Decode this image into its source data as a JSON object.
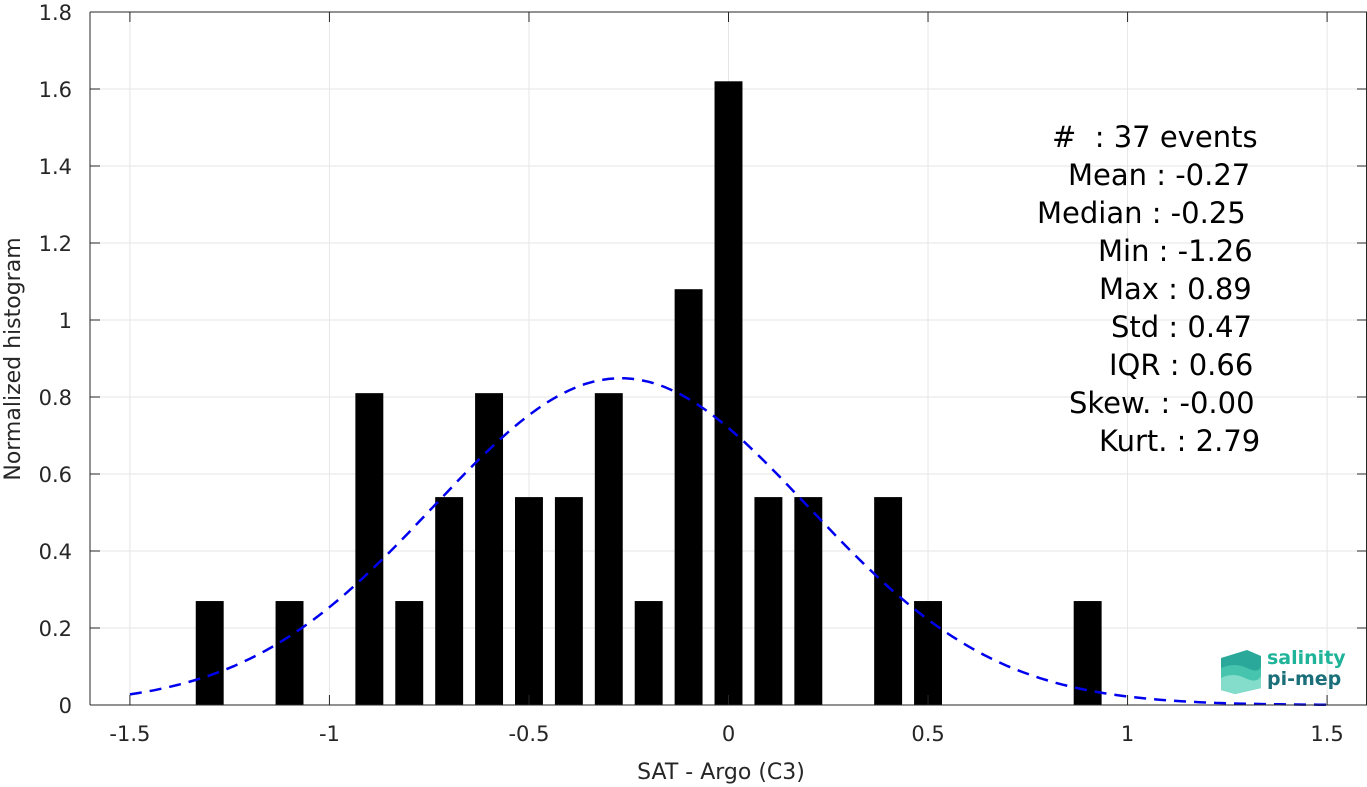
{
  "chart_data": {
    "type": "bar",
    "xlabel": "SAT - Argo (C3)",
    "ylabel": "Normalized histogram",
    "xlim": [
      -1.6,
      1.6
    ],
    "ylim": [
      0,
      1.8
    ],
    "xticks": [
      -1.5,
      -1,
      -0.5,
      0,
      0.5,
      1,
      1.5
    ],
    "xtick_labels": [
      "-1.5",
      "-1",
      "-0.5",
      "0",
      "0.5",
      "1",
      "1.5"
    ],
    "yticks": [
      0,
      0.2,
      0.4,
      0.6,
      0.8,
      1,
      1.2,
      1.4,
      1.6,
      1.8
    ],
    "ytick_labels": [
      "0",
      "0.2",
      "0.4",
      "0.6",
      "0.8",
      "1",
      "1.2",
      "1.4",
      "1.6",
      "1.8"
    ],
    "grid": true,
    "bar_width": 0.07,
    "bars": [
      {
        "x": -1.3,
        "y": 0.27
      },
      {
        "x": -1.1,
        "y": 0.27
      },
      {
        "x": -0.9,
        "y": 0.81
      },
      {
        "x": -0.8,
        "y": 0.27
      },
      {
        "x": -0.7,
        "y": 0.54
      },
      {
        "x": -0.6,
        "y": 0.81
      },
      {
        "x": -0.5,
        "y": 0.54
      },
      {
        "x": -0.4,
        "y": 0.54
      },
      {
        "x": -0.3,
        "y": 0.81
      },
      {
        "x": -0.2,
        "y": 0.27
      },
      {
        "x": -0.1,
        "y": 1.08
      },
      {
        "x": 0.0,
        "y": 1.62
      },
      {
        "x": 0.1,
        "y": 0.54
      },
      {
        "x": 0.2,
        "y": 0.54
      },
      {
        "x": 0.4,
        "y": 0.54
      },
      {
        "x": 0.5,
        "y": 0.27
      },
      {
        "x": 0.9,
        "y": 0.27
      }
    ],
    "fit_curve": {
      "style": "dashed",
      "color": "#0000ee",
      "mean": -0.27,
      "std": 0.47,
      "xrange": [
        -1.5,
        1.5
      ]
    },
    "bar_color": "#000000"
  },
  "stats": {
    "events": "#  : 37 events",
    "mean": "Mean : -0.27",
    "median": "Median : -0.25",
    "min": "Min : -1.26",
    "max": "Max : 0.89",
    "std": "Std : 0.47",
    "iqr": "IQR : 0.66",
    "skew": "Skew. : -0.00",
    "kurt": "Kurt. : 2.79"
  },
  "logo": {
    "line1": "salinity",
    "line2": "pi-mep"
  }
}
